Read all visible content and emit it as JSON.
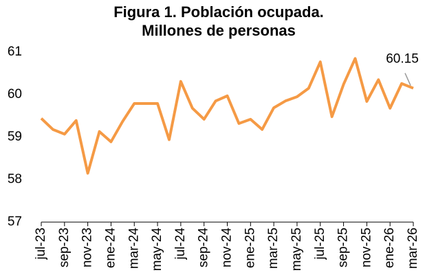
{
  "chart_data": {
    "type": "line",
    "title": [
      "Figura 1. Población ocupada.",
      "Millones de personas"
    ],
    "categories": [
      "jul-23",
      null,
      "sep-23",
      null,
      "nov-23",
      null,
      "ene-24",
      null,
      "mar-24",
      null,
      "may-24",
      null,
      "jul-24",
      null,
      "sep-24",
      null,
      "nov-24",
      null,
      "ene-25",
      null,
      "mar-25",
      null,
      "may-25",
      null,
      "jul-25",
      null,
      "sep-25",
      null,
      "nov-25",
      null,
      "ene-26",
      null,
      "mar-26"
    ],
    "values": [
      59.44,
      59.18,
      59.07,
      59.39,
      58.15,
      59.13,
      58.89,
      59.37,
      59.79,
      59.79,
      59.79,
      58.94,
      60.31,
      59.68,
      59.42,
      59.85,
      59.97,
      59.32,
      59.42,
      59.18,
      59.69,
      59.85,
      59.95,
      60.15,
      60.77,
      59.48,
      60.24,
      60.85,
      59.84,
      60.35,
      59.68,
      60.26,
      60.15
    ],
    "color": "#f59a45",
    "ylim": [
      57,
      61
    ],
    "yticks": [
      57,
      58,
      59,
      60,
      61
    ],
    "grid": false
  }
}
